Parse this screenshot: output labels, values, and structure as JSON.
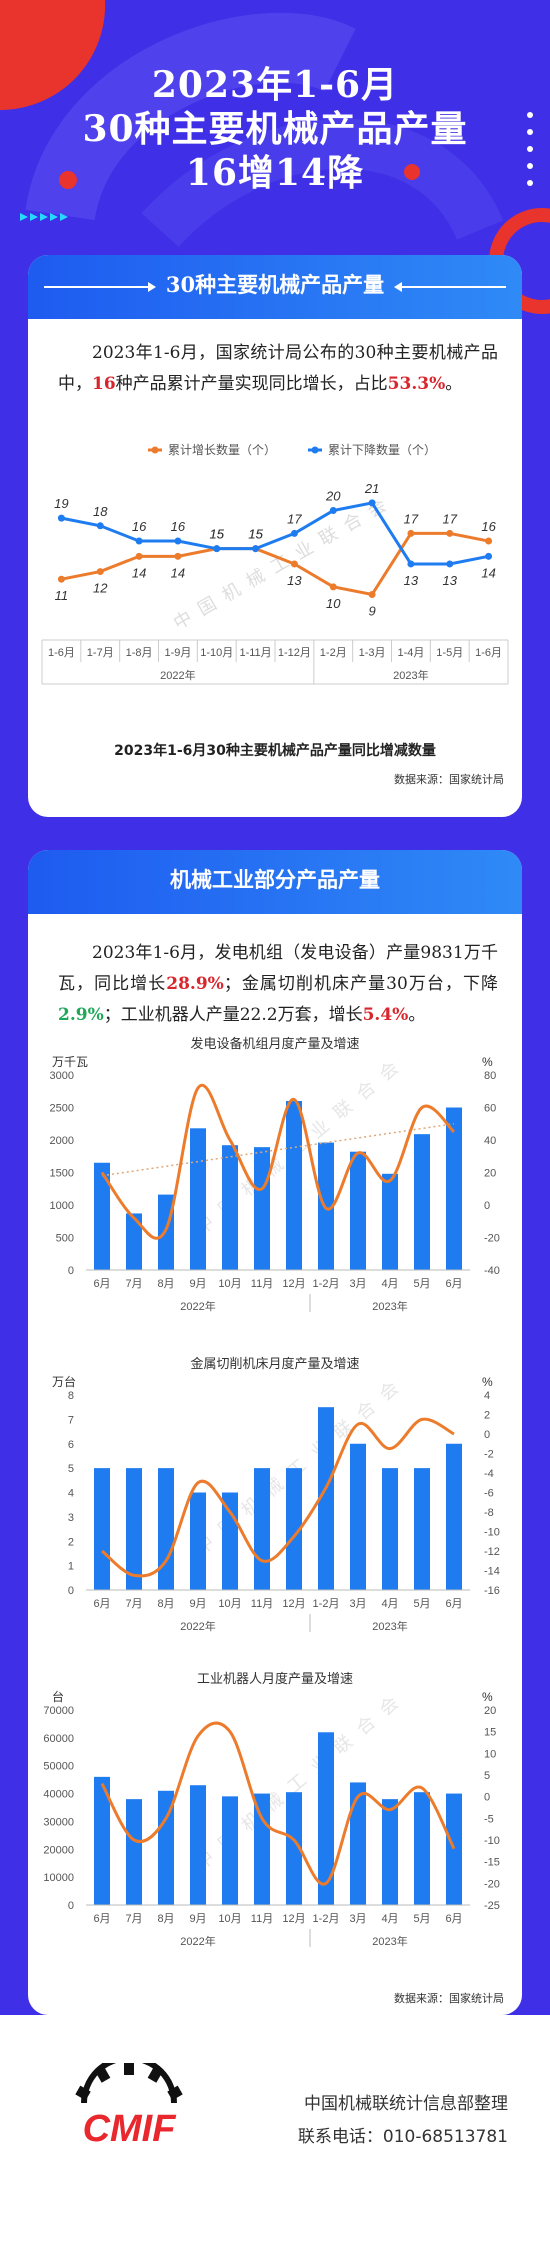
{
  "header": {
    "title_line1": "2023年1-6月",
    "title_line2": "30种主要机械产品产量",
    "title_line3": "16增14降"
  },
  "card1": {
    "heading": "30种主要机械产品产量",
    "para": {
      "p1": "2023年1-6月，国家统计局公布的30种主要机械产品中，",
      "hl1": "16",
      "p2": "种产品累计产量实现同比增长，占比",
      "hl2": "53.3%",
      "p3": "。"
    },
    "caption": "2023年1-6月30种主要机械产品产量同比增减数量",
    "source": "数据来源：国家统计局"
  },
  "card2": {
    "heading": "机械工业部分产品产量",
    "para": {
      "p1": "2023年1-6月，发电机组（发电设备）产量9831万千瓦，同比增长",
      "hl1": "28.9%",
      "p2": "；金属切削机床产量30万台，下降",
      "hl2": "2.9%",
      "p3": "；工业机器人产量22.2万套，增长",
      "hl3": "5.4%",
      "p4": "。"
    },
    "source": "数据来源：国家统计局"
  },
  "footer": {
    "org": "中国机械联统计信息部整理",
    "phone": "联系电话：010-68513781",
    "logo_text": "CMIF"
  },
  "watermark": "中国机械工业联合会",
  "colors": {
    "blue": "#1e7cf0",
    "orange": "#ec7b2c",
    "bg": "#3f2fe6",
    "red": "#d8262c",
    "green": "#1fa85a"
  },
  "chart_data": [
    {
      "type": "line",
      "categories": [
        "1-6月",
        "1-7月",
        "1-8月",
        "1-9月",
        "1-10月",
        "1-11月",
        "1-12月",
        "1-2月",
        "1-3月",
        "1-4月",
        "1-5月",
        "1-6月"
      ],
      "groups": [
        "2022年",
        "2023年"
      ],
      "series": [
        {
          "name": "累计增长数量（个）",
          "color": "#ec7b2c",
          "values": [
            11,
            12,
            14,
            14,
            15,
            15,
            13,
            10,
            9,
            17,
            17,
            16
          ]
        },
        {
          "name": "累计下降数量（个）",
          "color": "#1e7cf0",
          "values": [
            19,
            18,
            16,
            16,
            15,
            15,
            17,
            20,
            21,
            13,
            13,
            14
          ]
        }
      ],
      "ylim": [
        5,
        24
      ]
    },
    {
      "type": "bar",
      "title": "发电设备机组月度产量及增速",
      "categories": [
        "6月",
        "7月",
        "8月",
        "9月",
        "10月",
        "11月",
        "12月",
        "1-2月",
        "3月",
        "4月",
        "5月",
        "6月"
      ],
      "groups": [
        "2022年",
        "2023年"
      ],
      "ylabel": "万千瓦",
      "ylabel2": "%",
      "yticks": [
        0,
        500,
        1000,
        1500,
        2000,
        2500,
        3000
      ],
      "y2ticks": [
        -40,
        -20,
        0,
        20,
        40,
        60,
        80
      ],
      "values": [
        1650,
        870,
        1160,
        2180,
        1920,
        1890,
        2600,
        1960,
        1820,
        1480,
        2090,
        2500
      ],
      "growth": [
        20,
        -8,
        -15,
        72,
        40,
        10,
        65,
        -2,
        32,
        15,
        60,
        45
      ],
      "trendline": [
        18,
        50
      ]
    },
    {
      "type": "bar",
      "title": "金属切削机床月度产量及增速",
      "categories": [
        "6月",
        "7月",
        "8月",
        "9月",
        "10月",
        "11月",
        "12月",
        "1-2月",
        "3月",
        "4月",
        "5月",
        "6月"
      ],
      "groups": [
        "2022年",
        "2023年"
      ],
      "ylabel": "万台",
      "ylabel2": "%",
      "yticks": [
        0,
        1,
        2,
        3,
        4,
        5,
        6,
        7,
        8
      ],
      "y2ticks": [
        -16,
        -14,
        -12,
        -10,
        -8,
        -6,
        -4,
        -2,
        0,
        2,
        4
      ],
      "values": [
        5,
        5,
        5,
        4,
        4,
        5,
        5,
        7.5,
        6,
        5,
        5,
        6
      ],
      "growth": [
        -12,
        -14.5,
        -13,
        -5,
        -8,
        -13,
        -10.5,
        -5.5,
        1,
        -1.5,
        1.5,
        0
      ]
    },
    {
      "type": "bar",
      "title": "工业机器人月度产量及增速",
      "categories": [
        "6月",
        "7月",
        "8月",
        "9月",
        "10月",
        "11月",
        "12月",
        "1-2月",
        "3月",
        "4月",
        "5月",
        "6月"
      ],
      "groups": [
        "2022年",
        "2023年"
      ],
      "ylabel": "台",
      "ylabel2": "%",
      "yticks": [
        0,
        10000,
        20000,
        30000,
        40000,
        50000,
        60000,
        70000
      ],
      "y2ticks": [
        -25,
        -20,
        -15,
        -10,
        -5,
        0,
        5,
        10,
        15,
        20
      ],
      "values": [
        46000,
        38000,
        41000,
        43000,
        39000,
        40000,
        40500,
        62000,
        44000,
        38000,
        40500,
        40000
      ],
      "growth": [
        3,
        -10,
        -5,
        14,
        15,
        -5,
        -10,
        -20,
        0,
        -3,
        2,
        -12
      ]
    }
  ]
}
